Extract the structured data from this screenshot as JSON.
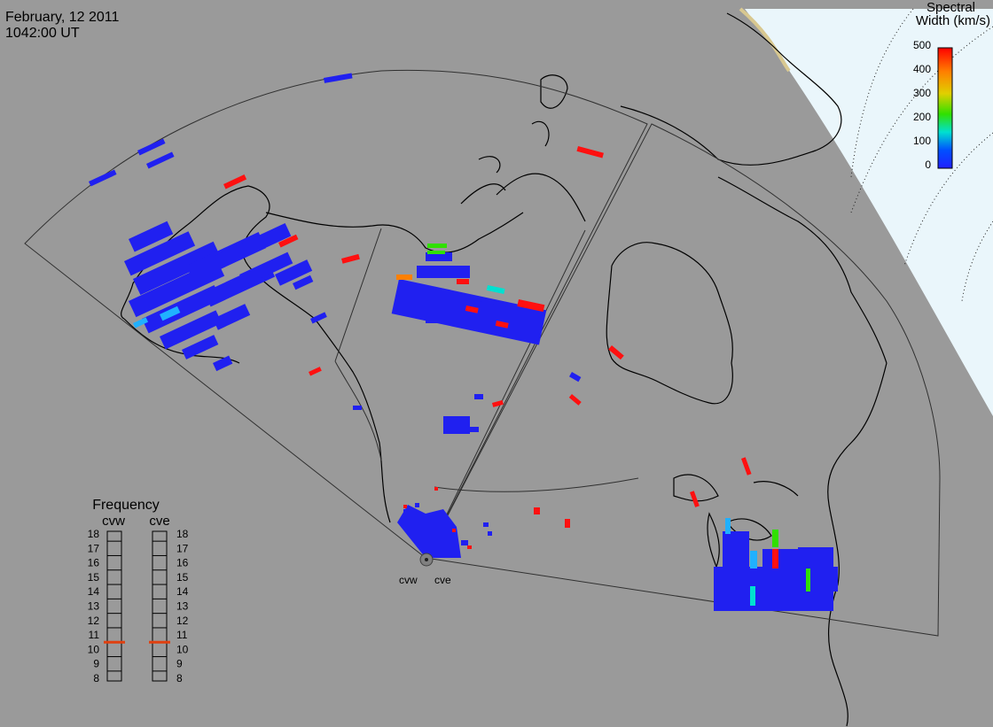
{
  "header": {
    "date": "February, 12 2011",
    "time": "1042:00 UT"
  },
  "colorbar": {
    "title_line1": "Spectral",
    "title_line2": "Width (km/s)",
    "ticks": [
      "500",
      "400",
      "300",
      "200",
      "100",
      "0"
    ],
    "colors": [
      "#ff0000",
      "#ff8000",
      "#e0d000",
      "#30e000",
      "#00e0d0",
      "#0050ff",
      "#2020ff"
    ]
  },
  "frequency": {
    "title": "Frequency",
    "left_label": "cvw",
    "right_label": "cve",
    "scale": [
      "18",
      "17",
      "16",
      "15",
      "14",
      "13",
      "12",
      "11",
      "10",
      "9",
      "8"
    ],
    "cvw_value": 10.5,
    "cve_value": 10.5,
    "marker_color": "#e04010"
  },
  "radars": {
    "west_label": "cvw",
    "east_label": "cve"
  },
  "palette": {
    "background": "#9a9a9a",
    "polar_sky": "#eaf6fb",
    "low_width": "#2020f0",
    "high_width": "#ff1010"
  }
}
